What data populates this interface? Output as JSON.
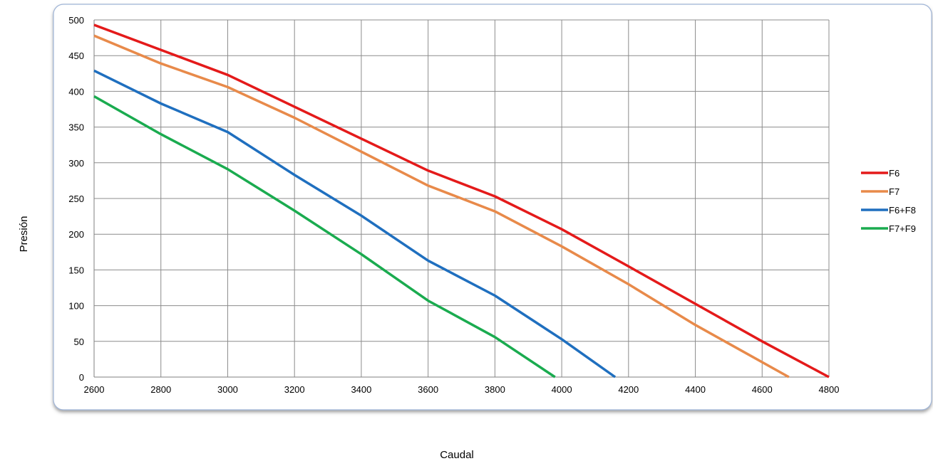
{
  "chart_data": {
    "type": "line",
    "title": "",
    "xlabel": "Caudal",
    "ylabel": "Presión",
    "xlim": [
      2600,
      4800
    ],
    "ylim": [
      0,
      500
    ],
    "x_ticks": [
      2600,
      2800,
      3000,
      3200,
      3400,
      3600,
      3800,
      4000,
      4200,
      4400,
      4600,
      4800
    ],
    "y_ticks": [
      0,
      50,
      100,
      150,
      200,
      250,
      300,
      350,
      400,
      450,
      500
    ],
    "grid": true,
    "legend": "right",
    "series": [
      {
        "name": "F6",
        "color": "#e41a1a",
        "x": [
          2600,
          3000,
          3600,
          3800,
          4000,
          4200,
          4600,
          4800
        ],
        "y": [
          493,
          423,
          289,
          253,
          207,
          155,
          50,
          0
        ]
      },
      {
        "name": "F7",
        "color": "#e88a4a",
        "x": [
          2600,
          2800,
          3000,
          3200,
          3600,
          3800,
          4000,
          4200,
          4400,
          4680
        ],
        "y": [
          478,
          439,
          406,
          363,
          268,
          232,
          183,
          130,
          73,
          0
        ]
      },
      {
        "name": "F6+F8",
        "color": "#1f6fbf",
        "x": [
          2600,
          2800,
          3000,
          3200,
          3400,
          3600,
          3800,
          4000,
          4160
        ],
        "y": [
          429,
          383,
          343,
          283,
          226,
          163,
          114,
          53,
          0
        ]
      },
      {
        "name": "F7+F9",
        "color": "#1aab4f",
        "x": [
          2600,
          2800,
          3000,
          3200,
          3400,
          3600,
          3800,
          3980
        ],
        "y": [
          393,
          340,
          291,
          233,
          172,
          107,
          56,
          0
        ]
      }
    ]
  }
}
